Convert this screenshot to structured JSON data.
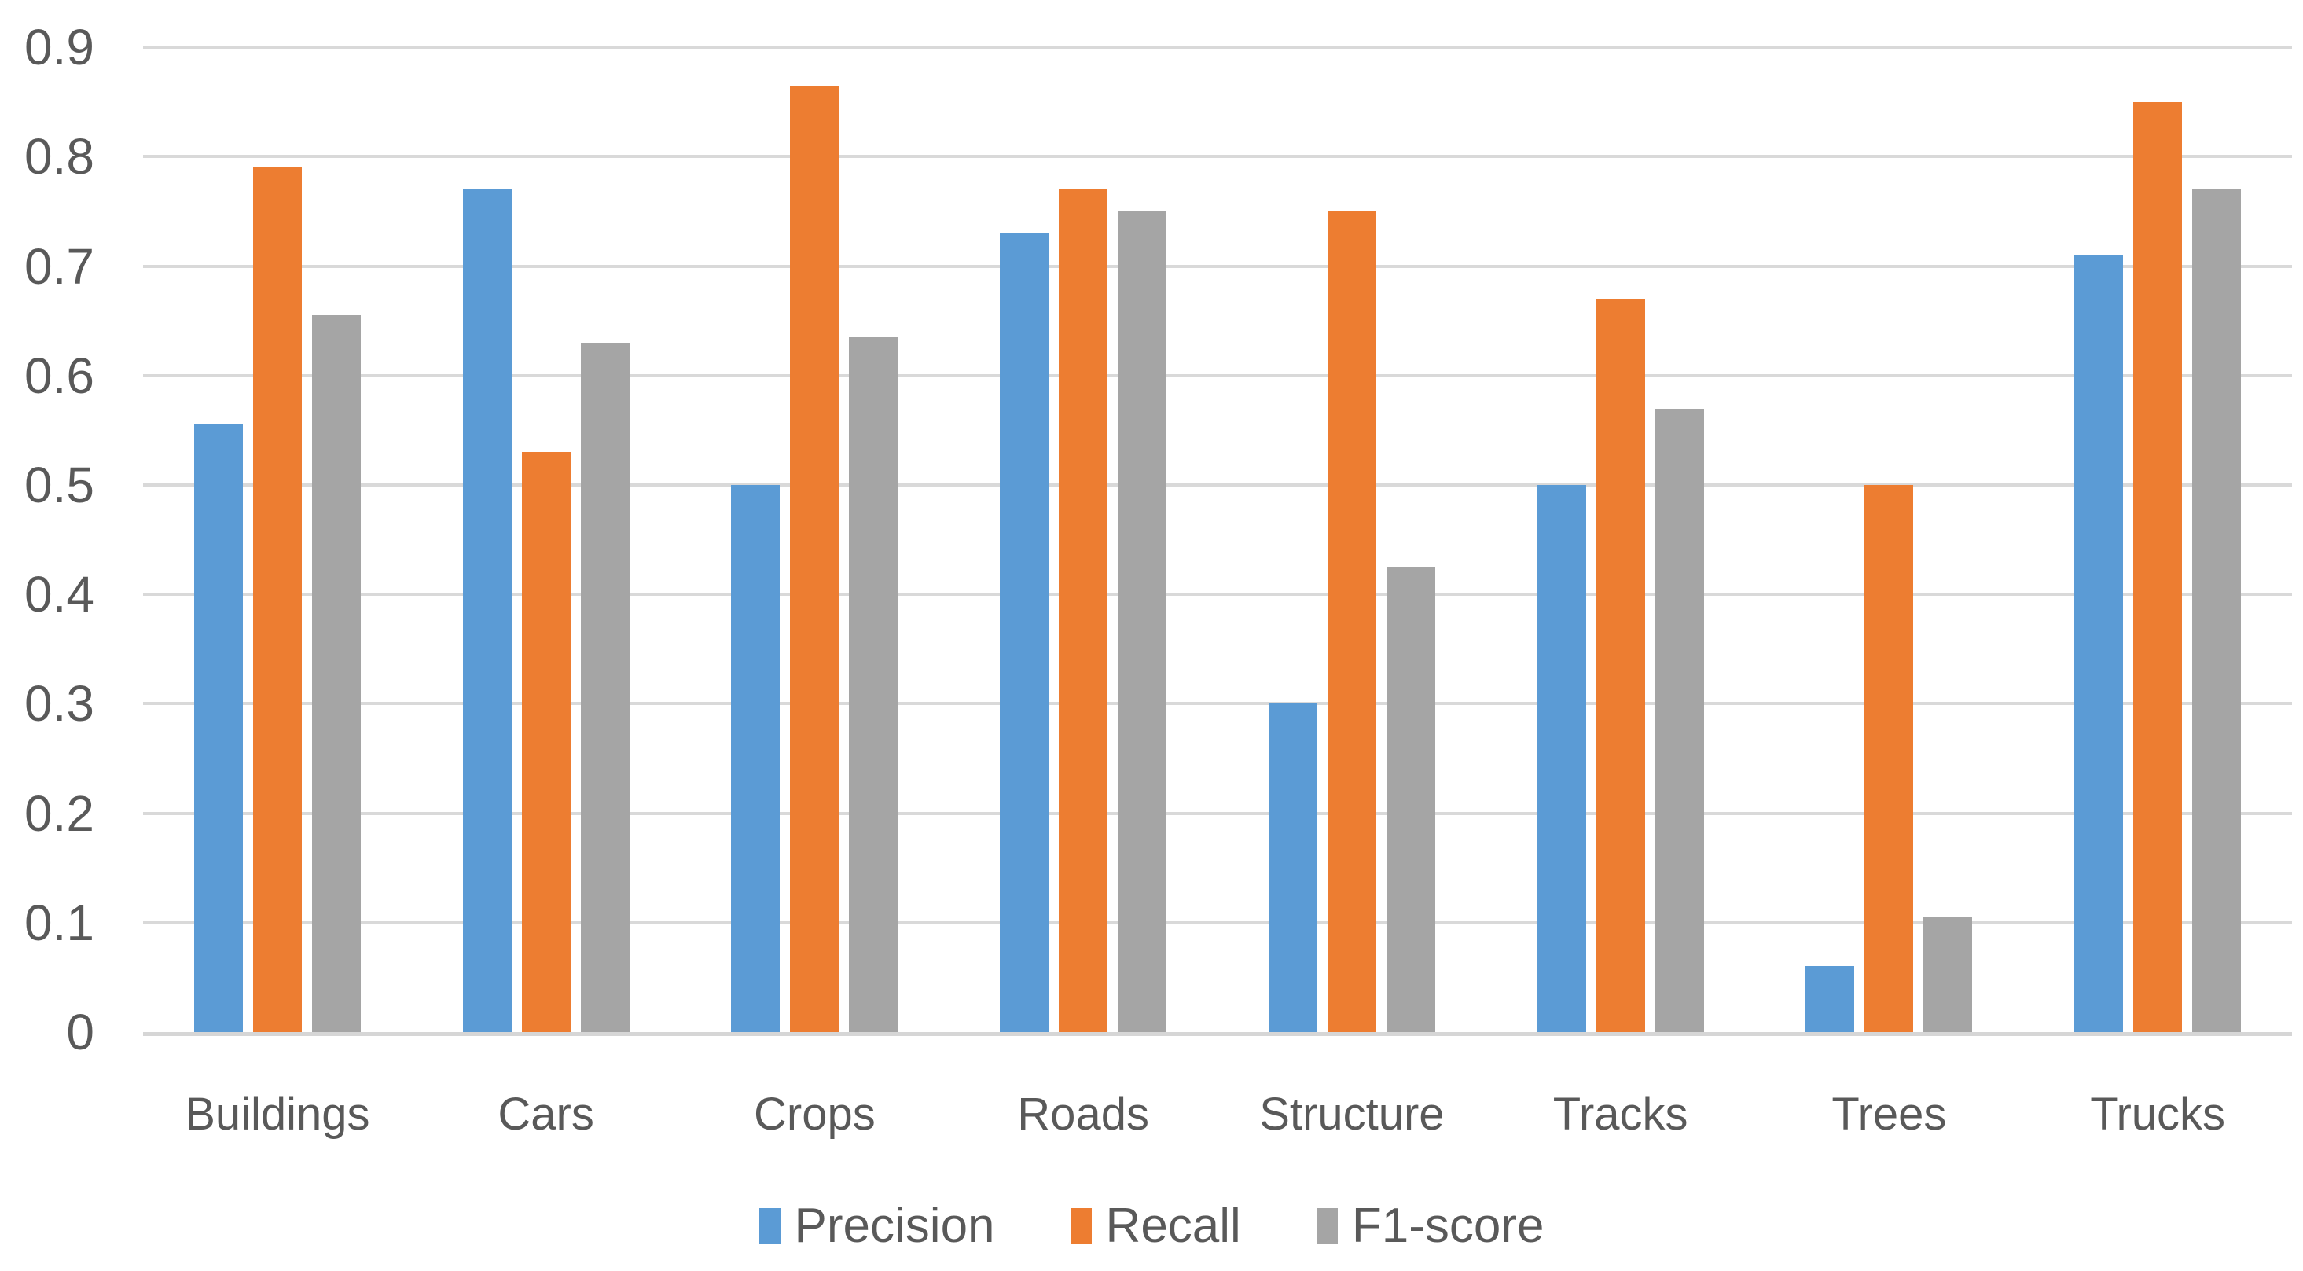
{
  "chart_data": {
    "type": "bar",
    "title": "",
    "categories": [
      "Buildings",
      "Cars",
      "Crops",
      "Roads",
      "Structure",
      "Tracks",
      "Trees",
      "Trucks"
    ],
    "series": [
      {
        "name": "Precision",
        "color": "#5B9BD5",
        "values": [
          0.555,
          0.77,
          0.5,
          0.73,
          0.3,
          0.5,
          0.06,
          0.71
        ]
      },
      {
        "name": "Recall",
        "color": "#ED7D31",
        "values": [
          0.79,
          0.53,
          0.865,
          0.77,
          0.75,
          0.67,
          0.5,
          0.85
        ]
      },
      {
        "name": "F1-score",
        "color": "#A5A5A5",
        "values": [
          0.655,
          0.63,
          0.635,
          0.75,
          0.425,
          0.57,
          0.105,
          0.77
        ]
      }
    ],
    "y_axis": {
      "min": 0,
      "max": 0.9,
      "step": 0.1,
      "tick_labels": [
        "0",
        "0.1",
        "0.2",
        "0.3",
        "0.4",
        "0.5",
        "0.6",
        "0.7",
        "0.8",
        "0.9"
      ]
    },
    "x_axis": {
      "label": ""
    },
    "legend_position": "bottom",
    "grid": true,
    "gridline_color": "#D9D9D9",
    "axis_line_color": "#D6D6D6",
    "text_color": "#595959",
    "background": "#FFFFFF"
  }
}
